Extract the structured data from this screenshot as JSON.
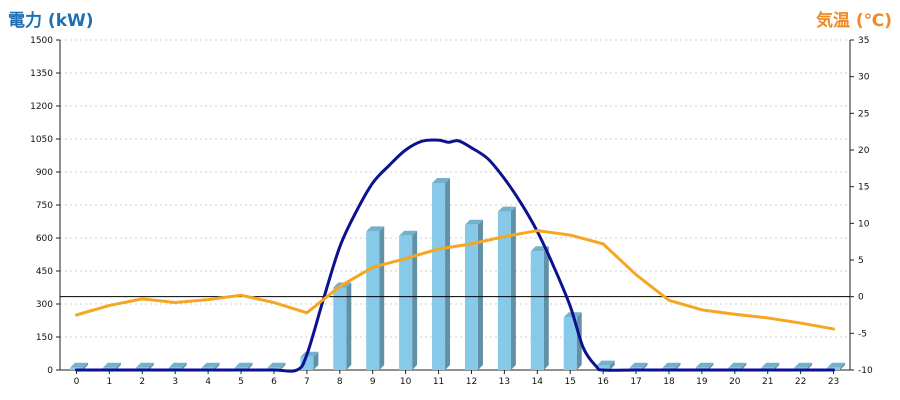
{
  "chart_data": {
    "type": "bar-line-combo",
    "left_axis": {
      "title": "電力 (kW)",
      "range": [
        0,
        1500
      ],
      "ticks": [
        0,
        150,
        300,
        450,
        600,
        750,
        900,
        1050,
        1200,
        1350,
        1500
      ],
      "color": "#1f6fb2"
    },
    "right_axis": {
      "title": "気温 (℃)",
      "range": [
        -10,
        35
      ],
      "ticks": [
        -10,
        -5,
        0,
        5,
        10,
        15,
        20,
        25,
        30,
        35
      ],
      "color": "#f08a24"
    },
    "x_axis": {
      "ticks": [
        "0",
        "1",
        "2",
        "3",
        "4",
        "5",
        "6",
        "7",
        "8",
        "9",
        "10",
        "11",
        "12",
        "13",
        "14",
        "15",
        "16",
        "17",
        "18",
        "19",
        "20",
        "21",
        "22",
        "23"
      ]
    },
    "grid": true,
    "reference_line_temp": 0,
    "series": [
      {
        "kind": "bar",
        "axis": "left",
        "color": "#86c9e8",
        "values": [
          10,
          10,
          10,
          10,
          10,
          10,
          10,
          60,
          375,
          630,
          610,
          850,
          660,
          720,
          540,
          240,
          20,
          10,
          10,
          10,
          10,
          10,
          10,
          10
        ]
      },
      {
        "kind": "line",
        "axis": "left",
        "color": "#0c128f",
        "points": [
          [
            0,
            0
          ],
          [
            1,
            0
          ],
          [
            2,
            0
          ],
          [
            3,
            0
          ],
          [
            4,
            0
          ],
          [
            5,
            0
          ],
          [
            6,
            0
          ],
          [
            6.7,
            0
          ],
          [
            7,
            70
          ],
          [
            7.5,
            320
          ],
          [
            8,
            560
          ],
          [
            8.5,
            720
          ],
          [
            9,
            850
          ],
          [
            9.5,
            930
          ],
          [
            10,
            1000
          ],
          [
            10.5,
            1040
          ],
          [
            11,
            1045
          ],
          [
            11.3,
            1035
          ],
          [
            11.6,
            1042
          ],
          [
            12,
            1010
          ],
          [
            12.5,
            960
          ],
          [
            13,
            870
          ],
          [
            13.5,
            760
          ],
          [
            14,
            630
          ],
          [
            14.5,
            470
          ],
          [
            15,
            290
          ],
          [
            15.4,
            100
          ],
          [
            15.8,
            15
          ],
          [
            16,
            0
          ],
          [
            17,
            0
          ],
          [
            18,
            0
          ],
          [
            19,
            0
          ],
          [
            20,
            0
          ],
          [
            21,
            0
          ],
          [
            22,
            0
          ],
          [
            23,
            0
          ]
        ]
      },
      {
        "kind": "line",
        "axis": "right",
        "color": "#f5a623",
        "points": [
          [
            0,
            -2.5
          ],
          [
            1,
            -1.2
          ],
          [
            2,
            -0.3
          ],
          [
            3,
            -0.8
          ],
          [
            4,
            -0.4
          ],
          [
            5,
            0.2
          ],
          [
            6,
            -0.8
          ],
          [
            7,
            -2.2
          ],
          [
            8,
            1.4
          ],
          [
            9,
            4.0
          ],
          [
            10,
            5.2
          ],
          [
            11,
            6.5
          ],
          [
            12,
            7.2
          ],
          [
            13,
            8.2
          ],
          [
            14,
            9.0
          ],
          [
            15,
            8.4
          ],
          [
            16,
            7.2
          ],
          [
            17,
            3.0
          ],
          [
            18,
            -0.5
          ],
          [
            19,
            -1.8
          ],
          [
            20,
            -2.4
          ],
          [
            21,
            -2.9
          ],
          [
            22,
            -3.6
          ],
          [
            23,
            -4.4
          ]
        ]
      }
    ]
  }
}
